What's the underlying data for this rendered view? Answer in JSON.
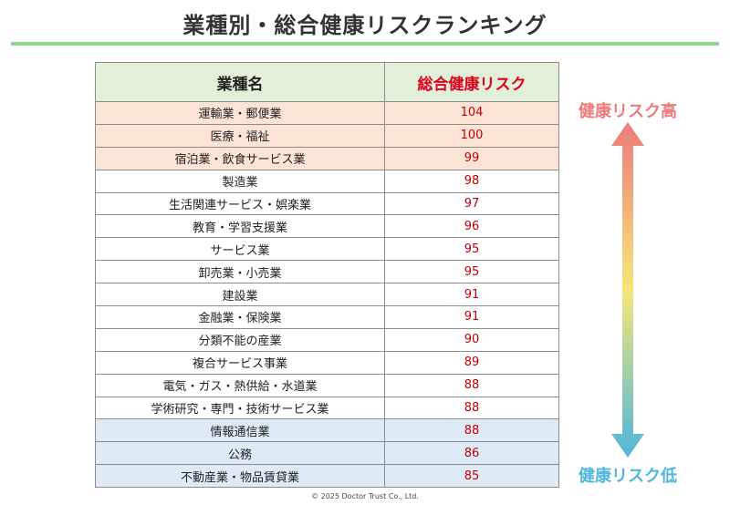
{
  "title": "業種別・総合健康リスクランキング",
  "table": {
    "headers": {
      "name": "業種名",
      "risk": "総合健康リスク"
    }
  },
  "chart_data": {
    "type": "table",
    "title": "業種別・総合健康リスクランキング",
    "columns": [
      "業種名",
      "総合健康リスク"
    ],
    "rows": [
      {
        "category": "運輸業・郵便業",
        "value": 104
      },
      {
        "category": "医療・福祉",
        "value": 100
      },
      {
        "category": "宿泊業・飲食サービス業",
        "value": 99
      },
      {
        "category": "製造業",
        "value": 98
      },
      {
        "category": "生活関連サービス・娯楽業",
        "value": 97
      },
      {
        "category": "教育・学習支援業",
        "value": 96
      },
      {
        "category": "サービス業",
        "value": 95
      },
      {
        "category": "卸売業・小売業",
        "value": 95
      },
      {
        "category": "建設業",
        "value": 91
      },
      {
        "category": "金融業・保険業",
        "value": 91
      },
      {
        "category": "分類不能の産業",
        "value": 90
      },
      {
        "category": "複合サービス事業",
        "value": 89
      },
      {
        "category": "電気・ガス・熱供給・水道業",
        "value": 88
      },
      {
        "category": "学術研究・専門・技術サービス業",
        "value": 88
      },
      {
        "category": "情報通信業",
        "value": 88
      },
      {
        "category": "公務",
        "value": 86
      },
      {
        "category": "不動産業・物品賃貸業",
        "value": 85
      }
    ],
    "row_highlight": [
      "top",
      "top",
      "top",
      "mid",
      "mid",
      "mid",
      "mid",
      "mid",
      "mid",
      "mid",
      "mid",
      "mid",
      "mid",
      "mid",
      "low",
      "low",
      "low"
    ]
  },
  "legend": {
    "high": "健康リスク高",
    "low": "健康リスク低"
  },
  "colors": {
    "header_bg": "#e2efd9",
    "risk_header": "#e0001a",
    "value_text": "#c00000",
    "top_row_bg": "#fbe4d6",
    "low_row_bg": "#deeaf6",
    "arrow_top": "#ee7b7b",
    "arrow_mid": "#f3e77a",
    "arrow_bottom": "#4fb6dc"
  },
  "footer": "© 2025 Doctor Trust Co., Ltd."
}
